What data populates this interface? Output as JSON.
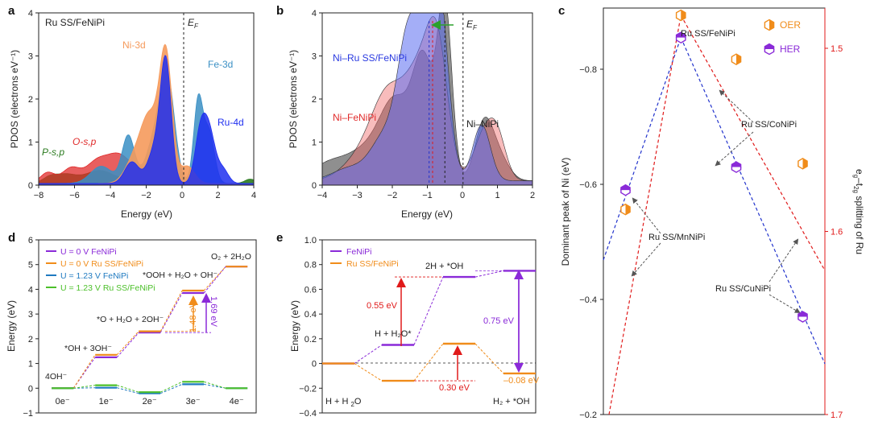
{
  "panel_letters": [
    "a",
    "b",
    "c",
    "d",
    "e"
  ],
  "colors": {
    "ni3d": "#f59a5c",
    "fe3d": "#3a8fc4",
    "ru4d": "#1f2ff0",
    "osp": "#e02a2a",
    "psp": "#2a7a1e",
    "niru": "#5a6bf0",
    "nife": "#f06a6a",
    "nini": "#6a6a6a",
    "purple": "#8a2ad8",
    "orange": "#f08c1a",
    "blue": "#1f7ac0",
    "green": "#4cc02a",
    "red": "#e01a1a",
    "c_blue": "#2233cc",
    "c_red": "#e01a1a"
  },
  "chart_data": [
    {
      "id": "a",
      "type": "area",
      "title": "Ru SS/FeNiPi",
      "xlabel": "Energy (eV)",
      "ylabel": "PDOS (electrons eV⁻¹)",
      "xlim": [
        -8,
        4
      ],
      "ylim": [
        0,
        4
      ],
      "xticks": [
        "-8",
        "-6",
        "-4",
        "-2",
        "0",
        "2",
        "4"
      ],
      "yticks": [
        "0",
        "1",
        "2",
        "3",
        "4"
      ],
      "fermi_label": "E",
      "fermi_sub": "F",
      "series": [
        {
          "name": "Ni-3d",
          "color": "ni3d",
          "peaks": [
            [
              -1.8,
              1.5,
              0.5
            ],
            [
              -0.9,
              2.9,
              0.35
            ],
            [
              -2.7,
              0.5,
              0.5
            ],
            [
              0.3,
              0.4,
              0.4
            ]
          ]
        },
        {
          "name": "Fe-3d",
          "color": "fe3d",
          "peaks": [
            [
              -3.0,
              1.1,
              0.35
            ],
            [
              -1.5,
              1.0,
              0.5
            ],
            [
              -0.8,
              2.2,
              0.4
            ],
            [
              0.9,
              1.9,
              0.25
            ],
            [
              1.5,
              1.2,
              0.3
            ],
            [
              -4.5,
              0.4,
              0.6
            ]
          ]
        },
        {
          "name": "Ru-4d",
          "color": "ru4d",
          "peaks": [
            [
              -2.8,
              0.5,
              0.4
            ],
            [
              -0.9,
              2.7,
              0.3
            ],
            [
              -1.5,
              0.8,
              0.4
            ],
            [
              1.0,
              1.0,
              0.3
            ],
            [
              1.5,
              1.2,
              0.35
            ],
            [
              2.3,
              0.3,
              0.3
            ]
          ]
        },
        {
          "name": "O-s,p",
          "color": "osp",
          "peaks": [
            [
              -7.5,
              0.25,
              0.4
            ],
            [
              -6.2,
              0.35,
              0.5
            ],
            [
              -4.8,
              0.45,
              0.6
            ],
            [
              -3.5,
              0.65,
              0.7
            ],
            [
              -2.0,
              0.3,
              0.5
            ]
          ]
        },
        {
          "name": "P-s,p",
          "color": "psp",
          "peaks": [
            [
              -7.4,
              0.12,
              0.4
            ],
            [
              -6.5,
              0.2,
              0.6
            ],
            [
              -4.6,
              0.3,
              0.8
            ],
            [
              -2.5,
              0.15,
              0.6
            ],
            [
              3.8,
              0.1,
              0.3
            ]
          ]
        }
      ],
      "labels": {
        "ni": "Ni-3d",
        "fe": "Fe-3d",
        "ru": "Ru-4d",
        "osp": "O-s,p",
        "psp": "P-s,p"
      }
    },
    {
      "id": "b",
      "type": "area",
      "xlabel": "Energy (eV)",
      "ylabel": "PDOS (electrons eV⁻¹)",
      "xlim": [
        -4,
        2
      ],
      "ylim": [
        0,
        4
      ],
      "xticks": [
        "-4",
        "-3",
        "-2",
        "-1",
        "0",
        "1",
        "2"
      ],
      "yticks": [
        "0",
        "1",
        "2",
        "3",
        "4"
      ],
      "fermi_label": "E",
      "fermi_sub": "F",
      "centers": {
        "ni_ru": -0.95,
        "ni_fe": -0.85,
        "ni_ni": -0.5
      },
      "series": [
        {
          "name": "Ni–NiPi",
          "color": "nini",
          "peaks": [
            [
              -0.5,
              4.0,
              0.2
            ],
            [
              -1.1,
              2.6,
              0.3
            ],
            [
              -1.9,
              1.8,
              0.45
            ],
            [
              -2.8,
              0.6,
              0.5
            ],
            [
              0.6,
              1.2,
              0.25
            ],
            [
              1.0,
              0.6,
              0.3
            ],
            [
              -3.8,
              0.4,
              0.5
            ]
          ]
        },
        {
          "name": "Ni–FeNiPi",
          "color": "nife",
          "peaks": [
            [
              -2.1,
              2.0,
              0.5
            ],
            [
              -1.2,
              2.1,
              0.4
            ],
            [
              -0.7,
              2.6,
              0.3
            ],
            [
              -3.0,
              0.4,
              0.5
            ],
            [
              0.6,
              1.0,
              0.3
            ],
            [
              1.0,
              0.9,
              0.25
            ]
          ]
        },
        {
          "name": "Ni–Ru SS/FeNiPi",
          "color": "niru",
          "peaks": [
            [
              -1.55,
              3.0,
              0.3
            ],
            [
              -0.95,
              3.7,
              0.3
            ],
            [
              -0.6,
              2.6,
              0.25
            ],
            [
              -2.2,
              1.0,
              0.4
            ],
            [
              0.55,
              1.3,
              0.25
            ],
            [
              -3.2,
              0.3,
              0.5
            ]
          ]
        }
      ],
      "labels": {
        "niru": "Ni–Ru SS/FeNiPi",
        "nife": "Ni–FeNiPi",
        "nini": "Ni–NiPi"
      }
    },
    {
      "id": "c",
      "type": "scatter",
      "ylabel_left": "Dominant peak of Ni (eV)",
      "ylabel_right": "e",
      "ylabel_right_sub1": "g",
      "ylabel_right_mid": "–t",
      "ylabel_right_sub2": "2g",
      "ylabel_right_end": " splitting of Ru",
      "ylim_left": [
        -0.2,
        -0.9
      ],
      "ylim_right": [
        1.7,
        1.47
      ],
      "yticks_left": [
        "-0.8",
        "-0.6",
        "-0.4",
        "-0.2"
      ],
      "yticks_right": [
        "1.5",
        "1.6",
        "1.7"
      ],
      "legend": [
        "OER",
        "HER"
      ],
      "her_points": [
        {
          "name": "Ru SS/MnNiPi",
          "x": 0.1,
          "y": -0.59
        },
        {
          "name": "Ru SS/FeNiPi",
          "x": 0.35,
          "y": -0.855
        },
        {
          "name": "Ru SS/CoNiPi",
          "x": 0.6,
          "y": -0.63
        },
        {
          "name": "Ru SS/CuNiPi",
          "x": 0.9,
          "y": -0.37
        }
      ],
      "oer_points": [
        {
          "name": "Ru SS/MnNiPi",
          "x": 0.1,
          "y": 1.588
        },
        {
          "name": "Ru SS/FeNiPi",
          "x": 0.35,
          "y": 1.482
        },
        {
          "name": "Ru SS/CoNiPi",
          "x": 0.6,
          "y": 1.506
        },
        {
          "name": "Ru SS/CuNiPi",
          "x": 0.9,
          "y": 1.563
        }
      ],
      "labels": {
        "fe": "Ru SS/FeNiPi",
        "co": "Ru SS/CoNiPi",
        "mn": "Ru SS/MnNiPi",
        "cu": "Ru SS/CuNiPi"
      }
    },
    {
      "id": "d",
      "type": "line",
      "ylabel": "Energy (eV)",
      "ylim": [
        -1,
        6
      ],
      "yticks": [
        "-1",
        "0",
        "1",
        "2",
        "3",
        "4",
        "5",
        "6"
      ],
      "categories": [
        "0e⁻",
        "1e⁻",
        "2e⁻",
        "3e⁻",
        "4e⁻"
      ],
      "series": [
        {
          "name": "U = 0 V FeNiPi",
          "color": "purple",
          "values": [
            0,
            1.25,
            2.25,
            3.85,
            4.92
          ]
        },
        {
          "name": "U = 0 V Ru SS/FeNiPi",
          "color": "orange",
          "values": [
            0,
            1.35,
            2.3,
            3.95,
            4.92
          ]
        },
        {
          "name": "U = 1.23 V FeNiPi",
          "color": "blue",
          "values": [
            0,
            0.02,
            -0.21,
            0.16,
            0
          ]
        },
        {
          "name": "U = 1.23 V Ru SS/FeNiPi",
          "color": "green",
          "values": [
            0,
            0.12,
            -0.16,
            0.26,
            0
          ]
        }
      ],
      "species": [
        "4OH⁻",
        "*OH + 3OH⁻",
        "*O + H₂O + 2OH⁻",
        "*OOH + H₂O + OH⁻",
        "O₂ + 2H₂O"
      ],
      "barriers": [
        "1.48 eV",
        "1.69 eV"
      ]
    },
    {
      "id": "e",
      "type": "line",
      "ylabel": "Energy (eV)",
      "ylim": [
        -0.4,
        1.0
      ],
      "yticks": [
        "-0.4",
        "-0.2",
        "0",
        "0.2",
        "0.4",
        "0.6",
        "0.8",
        "1.0"
      ],
      "categories": [
        "H + H₂O",
        "H + H₂O*",
        "2H + *OH",
        "H₂ + *OH"
      ],
      "series": [
        {
          "name": "FeNiPi",
          "color": "purple",
          "values": [
            0,
            0.15,
            0.7,
            0.75
          ]
        },
        {
          "name": "Ru SS/FeNiPi",
          "color": "orange",
          "values": [
            0,
            -0.14,
            0.16,
            -0.08
          ]
        }
      ],
      "species": {
        "s0a": "H + H",
        "s0b": "2",
        "s0c": "O",
        "s1": "H + H₂O*",
        "s2": "2H + *OH",
        "s3": "H₂ + *OH"
      },
      "annotations": {
        "a1": "0.55 eV",
        "a2": "0.75 eV",
        "a3": "0.30 eV",
        "a4": "–0.08 eV"
      }
    }
  ]
}
